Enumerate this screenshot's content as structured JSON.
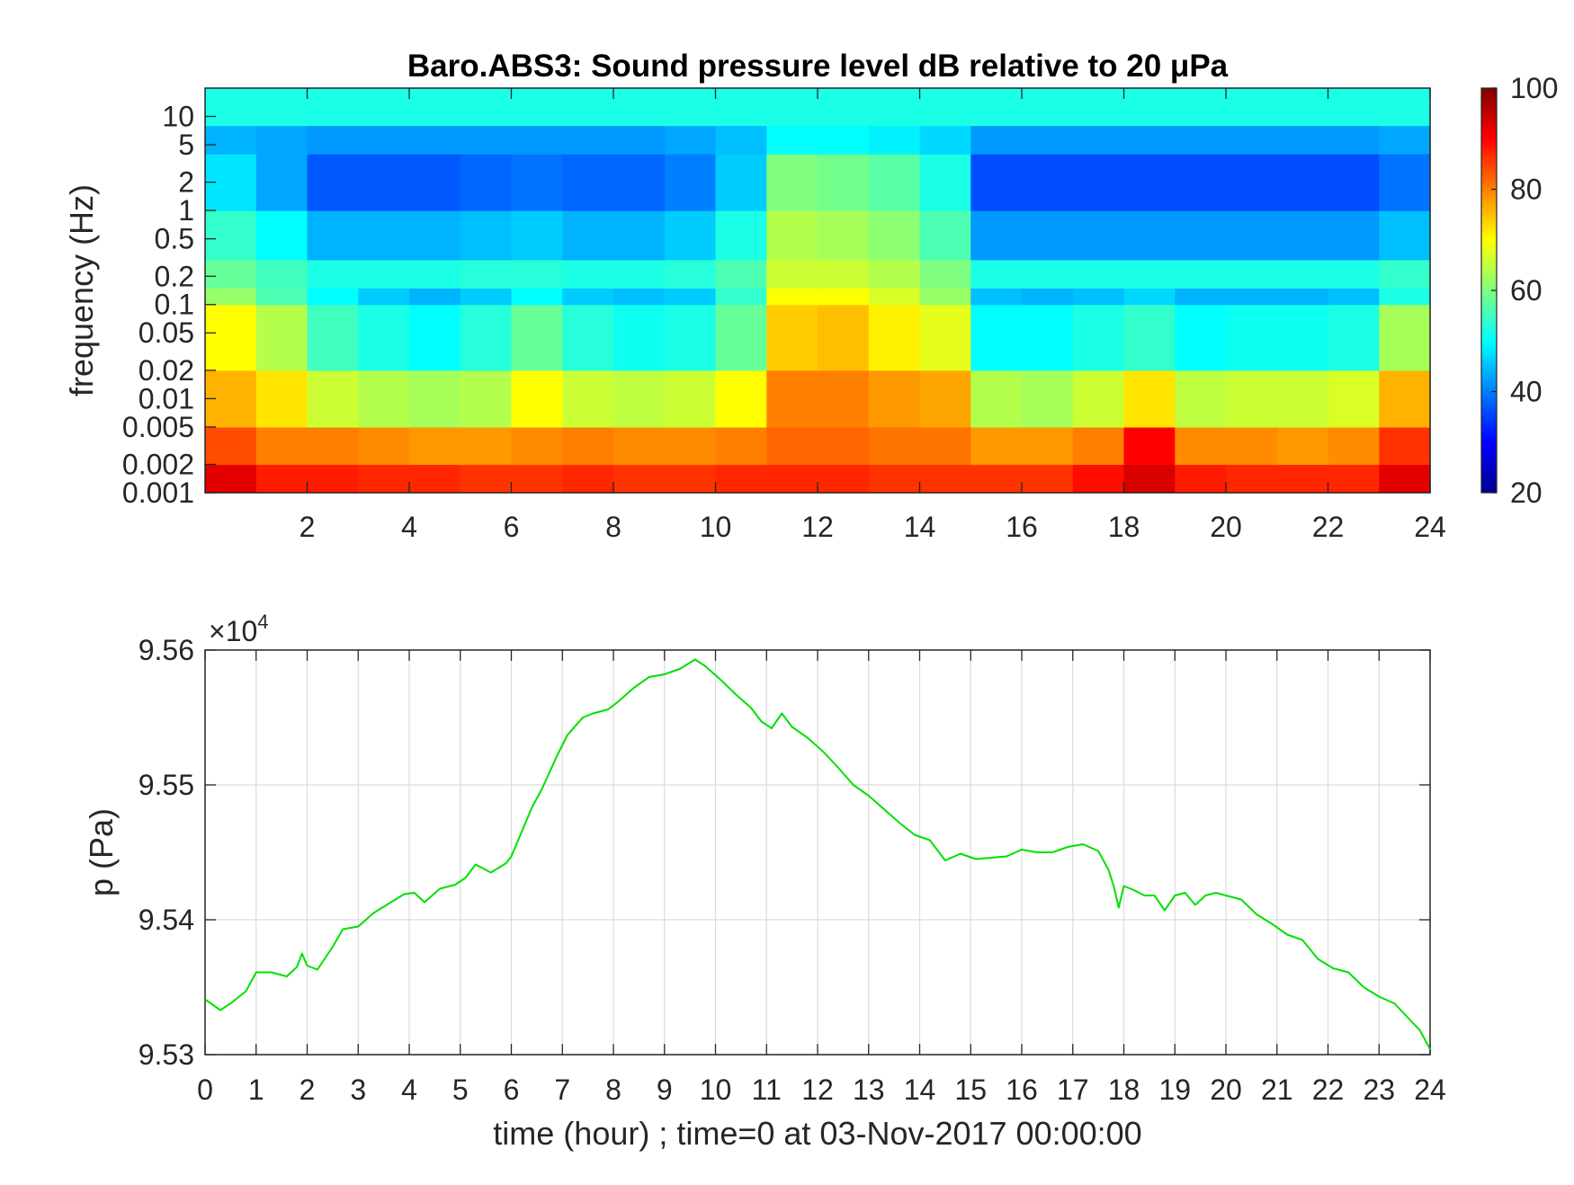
{
  "chart_data": [
    {
      "type": "heatmap",
      "title": "Baro.ABS3: Sound pressure level dB relative to 20 μPa",
      "ylabel": "frequency (Hz)",
      "xlabel": "",
      "x_range": [
        0,
        24
      ],
      "x_ticks": [
        2,
        4,
        6,
        8,
        10,
        12,
        14,
        16,
        18,
        20,
        22,
        24
      ],
      "y_scale": "log",
      "y_range": [
        0.001,
        20
      ],
      "y_ticks": [
        0.001,
        0.002,
        0.005,
        0.01,
        0.02,
        0.05,
        0.1,
        0.2,
        0.5,
        1,
        2,
        5,
        10
      ],
      "y_tick_labels": [
        "0.001",
        "0.002",
        "0.005",
        "0.01",
        "0.02",
        "0.05",
        "0.1",
        "0.2",
        "0.5",
        "1",
        "2",
        "5",
        "10"
      ],
      "colormap": "jet",
      "colorbar": {
        "range": [
          20,
          100
        ],
        "ticks": [
          20,
          40,
          60,
          80,
          100
        ]
      },
      "grid": false,
      "time_bins": [
        0.5,
        1.5,
        2.5,
        3.5,
        4.5,
        5.5,
        6.5,
        7.5,
        8.5,
        9.5,
        10.5,
        11.5,
        12.5,
        13.5,
        14.5,
        15.5,
        16.5,
        17.5,
        18.5,
        19.5,
        20.5,
        21.5,
        22.5,
        23.5
      ],
      "frequency_bands": [
        {
          "range": [
            0.001,
            0.002
          ],
          "values": [
            92,
            88,
            88,
            87,
            87,
            86,
            86,
            87,
            86,
            86,
            87,
            87,
            87,
            86,
            86,
            86,
            86,
            89,
            93,
            88,
            87,
            87,
            87,
            92
          ]
        },
        {
          "range": [
            0.002,
            0.005
          ],
          "values": [
            84,
            80,
            80,
            79,
            78,
            78,
            79,
            80,
            79,
            79,
            80,
            82,
            82,
            81,
            81,
            78,
            78,
            80,
            90,
            79,
            79,
            78,
            79,
            86
          ]
        },
        {
          "range": [
            0.005,
            0.02
          ],
          "values": [
            76,
            72,
            66,
            64,
            63,
            64,
            70,
            66,
            65,
            66,
            70,
            80,
            80,
            78,
            77,
            64,
            63,
            66,
            72,
            65,
            66,
            66,
            67,
            76
          ]
        },
        {
          "range": [
            0.02,
            0.1
          ],
          "values": [
            70,
            64,
            55,
            52,
            50,
            53,
            58,
            53,
            51,
            52,
            58,
            74,
            75,
            71,
            68,
            50,
            50,
            52,
            54,
            50,
            51,
            51,
            52,
            63
          ]
        },
        {
          "range": [
            0.1,
            0.15
          ],
          "values": [
            62,
            56,
            50,
            46,
            44,
            46,
            50,
            46,
            45,
            46,
            54,
            70,
            70,
            67,
            62,
            45,
            44,
            45,
            47,
            44,
            44,
            44,
            45,
            52
          ]
        },
        {
          "range": [
            0.15,
            0.3
          ],
          "values": [
            58,
            55,
            52,
            52,
            52,
            53,
            53,
            52,
            52,
            53,
            56,
            66,
            66,
            64,
            60,
            52,
            52,
            52,
            52,
            52,
            52,
            52,
            52,
            54
          ]
        },
        {
          "range": [
            0.3,
            1
          ],
          "values": [
            54,
            50,
            44,
            44,
            44,
            45,
            46,
            44,
            44,
            46,
            52,
            64,
            63,
            61,
            56,
            42,
            42,
            42,
            42,
            42,
            42,
            42,
            42,
            45
          ]
        },
        {
          "range": [
            1,
            4
          ],
          "values": [
            48,
            43,
            37,
            37,
            37,
            38,
            39,
            38,
            38,
            40,
            46,
            60,
            59,
            57,
            52,
            36,
            36,
            36,
            36,
            36,
            36,
            36,
            36,
            39
          ]
        },
        {
          "range": [
            4,
            8
          ],
          "values": [
            44,
            43,
            42,
            42,
            42,
            42,
            42,
            42,
            42,
            43,
            45,
            50,
            50,
            49,
            47,
            42,
            42,
            42,
            42,
            42,
            42,
            42,
            42,
            43
          ]
        },
        {
          "range": [
            8,
            20
          ],
          "values": [
            52,
            52,
            52,
            52,
            52,
            52,
            52,
            52,
            52,
            52,
            52,
            52,
            52,
            52,
            52,
            52,
            52,
            52,
            52,
            52,
            52,
            52,
            52,
            52
          ]
        }
      ]
    },
    {
      "type": "line",
      "xlabel": "time (hour) ; time=0 at 03-Nov-2017 00:00:00",
      "ylabel": "p (Pa)",
      "x_range": [
        0,
        24
      ],
      "x_ticks": [
        0,
        1,
        2,
        3,
        4,
        5,
        6,
        7,
        8,
        9,
        10,
        11,
        12,
        13,
        14,
        15,
        16,
        17,
        18,
        19,
        20,
        21,
        22,
        23,
        24
      ],
      "y_range": [
        9.53,
        9.56
      ],
      "y_ticks": [
        9.53,
        9.54,
        9.55,
        9.56
      ],
      "y_tick_labels": [
        "9.53",
        "9.54",
        "9.55",
        "9.56"
      ],
      "y_multiplier": "×10",
      "y_multiplier_exponent": "4",
      "grid": true,
      "series": [
        {
          "color": "#00e000",
          "x": [
            0,
            0.3,
            0.5,
            0.8,
            1.0,
            1.3,
            1.6,
            1.8,
            1.9,
            2.0,
            2.2,
            2.5,
            2.7,
            3.0,
            3.3,
            3.6,
            3.9,
            4.1,
            4.3,
            4.6,
            4.9,
            5.1,
            5.3,
            5.6,
            5.9,
            6.0,
            6.2,
            6.4,
            6.6,
            6.9,
            7.1,
            7.4,
            7.6,
            7.9,
            8.1,
            8.4,
            8.7,
            9.0,
            9.3,
            9.6,
            9.8,
            10.1,
            10.4,
            10.7,
            10.9,
            11.1,
            11.3,
            11.5,
            11.8,
            12.1,
            12.4,
            12.7,
            13.0,
            13.3,
            13.6,
            13.9,
            14.2,
            14.5,
            14.8,
            15.1,
            15.4,
            15.7,
            16.0,
            16.3,
            16.6,
            16.9,
            17.2,
            17.5,
            17.7,
            17.8,
            17.9,
            18.0,
            18.2,
            18.4,
            18.6,
            18.8,
            19.0,
            19.2,
            19.4,
            19.6,
            19.8,
            20.0,
            20.3,
            20.6,
            20.9,
            21.2,
            21.5,
            21.8,
            22.1,
            22.4,
            22.7,
            23.0,
            23.3,
            23.6,
            23.8,
            24.0
          ],
          "y": [
            9.5341,
            9.5333,
            9.5338,
            9.5347,
            9.5361,
            9.5361,
            9.5358,
            9.5365,
            9.5375,
            9.5366,
            9.5363,
            9.538,
            9.5393,
            9.5395,
            9.5405,
            9.5412,
            9.5419,
            9.542,
            9.5413,
            9.5423,
            9.5426,
            9.5431,
            9.5441,
            9.5435,
            9.5442,
            9.5447,
            9.5465,
            9.5483,
            9.5497,
            9.5522,
            9.5537,
            9.555,
            9.5553,
            9.5556,
            9.5562,
            9.5572,
            9.558,
            9.5582,
            9.5586,
            9.5593,
            9.5588,
            9.5578,
            9.5567,
            9.5557,
            9.5547,
            9.5542,
            9.5553,
            9.5543,
            9.5535,
            9.5525,
            9.5513,
            9.55,
            9.5492,
            9.5482,
            9.5472,
            9.5463,
            9.5459,
            9.5444,
            9.5449,
            9.5445,
            9.5446,
            9.5447,
            9.5452,
            9.545,
            9.545,
            9.5454,
            9.5456,
            9.5451,
            9.5437,
            9.5425,
            9.5409,
            9.5425,
            9.5422,
            9.5418,
            9.5418,
            9.5407,
            9.5418,
            9.542,
            9.5411,
            9.5418,
            9.542,
            9.5418,
            9.5415,
            9.5404,
            9.5397,
            9.5389,
            9.5385,
            9.5371,
            9.5364,
            9.5361,
            9.535,
            9.5343,
            9.5338,
            9.5326,
            9.5318,
            9.5304
          ]
        }
      ]
    }
  ]
}
